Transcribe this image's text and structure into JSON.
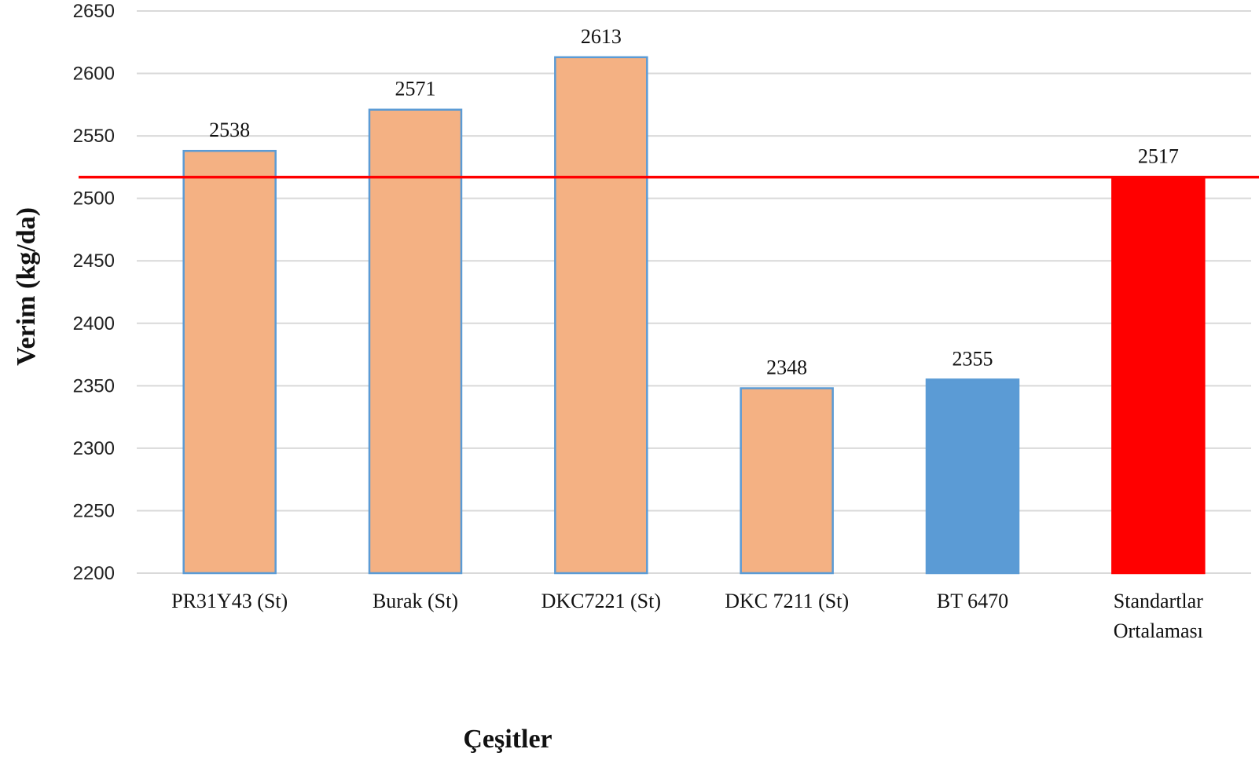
{
  "chart_data": {
    "type": "bar",
    "title": "",
    "xlabel": "Çeşitler",
    "ylabel": "Verim (kg/da)",
    "ylim": [
      2200,
      2650
    ],
    "yticks": [
      2200,
      2250,
      2300,
      2350,
      2400,
      2450,
      2500,
      2550,
      2600,
      2650
    ],
    "grid": true,
    "legend": "none",
    "categories": [
      [
        "PR31Y43 (St)"
      ],
      [
        "Burak (St)"
      ],
      [
        "DKC7221 (St)"
      ],
      [
        "DKC 7211 (St)"
      ],
      [
        "BT 6470"
      ],
      [
        "Standartlar",
        "Ortalaması"
      ]
    ],
    "values": [
      2538,
      2571,
      2613,
      2348,
      2355,
      2517
    ],
    "bar_colors": [
      "#f4b183",
      "#f4b183",
      "#f4b183",
      "#f4b183",
      "#5b9bd5",
      "#ff0000"
    ],
    "bar_edge_colors": [
      "#5b9bd5",
      "#5b9bd5",
      "#5b9bd5",
      "#5b9bd5",
      "#5b9bd5",
      "#ff0000"
    ],
    "reference_line": {
      "value": 2517,
      "color": "#ff0000"
    },
    "grid_color": "#d9d9d9"
  }
}
